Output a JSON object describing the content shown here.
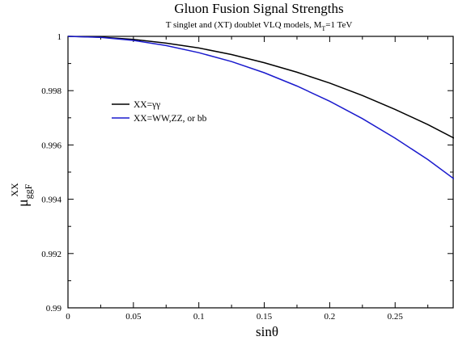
{
  "chart_data": {
    "type": "line",
    "title": "Gluon Fusion Signal Strengths",
    "subtitle": {
      "prefix": "T singlet and (XT) doublet  VLQ models, M",
      "subscript": "T",
      "suffix": "=1 TeV"
    },
    "xlabel": "sinθ",
    "ylabel": {
      "base": "μ",
      "subscript": "ggF",
      "superscript": "XX"
    },
    "xlim": [
      0,
      0.295
    ],
    "ylim": [
      0.99,
      1.0
    ],
    "x_ticks": [
      0,
      0.05,
      0.1,
      0.15,
      0.2,
      0.25
    ],
    "x_tick_labels": [
      "0",
      "0.05",
      "0.1",
      "0.15",
      "0.2",
      "0.25"
    ],
    "y_ticks": [
      0.99,
      0.992,
      0.994,
      0.996,
      0.998,
      1.0
    ],
    "y_tick_labels": [
      "0.99",
      "0.992",
      "0.994",
      "0.996",
      "0.998",
      "1"
    ],
    "grid": false,
    "legend_position": "upper-left",
    "series": [
      {
        "name": "XX=γγ",
        "color": "#000000",
        "x": [
          0,
          0.025,
          0.05,
          0.075,
          0.1,
          0.125,
          0.15,
          0.175,
          0.2,
          0.225,
          0.25,
          0.275,
          0.295
        ],
        "y": [
          1.0,
          0.99997,
          0.99989,
          0.99975,
          0.99957,
          0.99933,
          0.99903,
          0.99868,
          0.99828,
          0.99782,
          0.99731,
          0.99675,
          0.99625
        ]
      },
      {
        "name": "XX=WW,ZZ, or bb",
        "color": "#1a1acd",
        "x": [
          0,
          0.025,
          0.05,
          0.075,
          0.1,
          0.125,
          0.15,
          0.175,
          0.2,
          0.225,
          0.25,
          0.275,
          0.295
        ],
        "y": [
          1.0,
          0.99996,
          0.99985,
          0.99966,
          0.9994,
          0.99907,
          0.99866,
          0.99817,
          0.99761,
          0.99697,
          0.99625,
          0.99546,
          0.99475
        ]
      }
    ]
  }
}
